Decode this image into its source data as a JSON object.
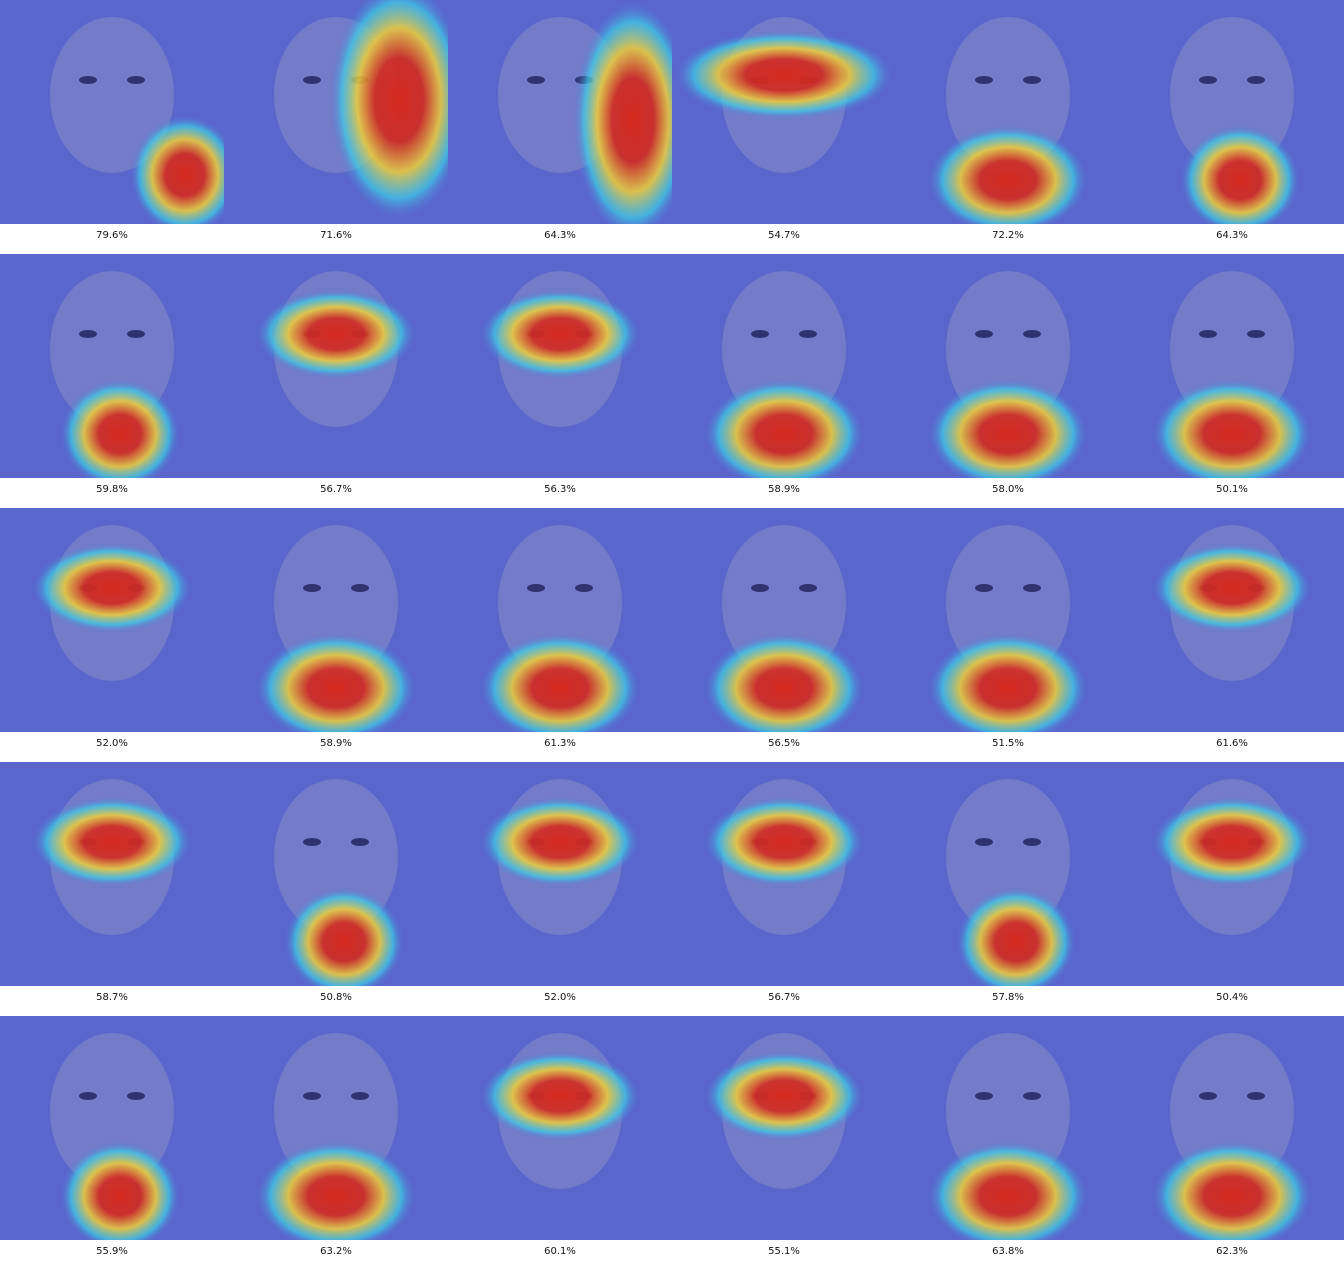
{
  "grid": {
    "rows": 5,
    "cols": 6,
    "cells": [
      {
        "caption": "79.6%",
        "heat_focus": "lower-right"
      },
      {
        "caption": "71.6%",
        "heat_focus": "right"
      },
      {
        "caption": "64.3%",
        "heat_focus": "right-edge"
      },
      {
        "caption": "54.7%",
        "heat_focus": "eyes-wide"
      },
      {
        "caption": "72.2%",
        "heat_focus": "neck"
      },
      {
        "caption": "64.3%",
        "heat_focus": "mouth-chin"
      },
      {
        "caption": "59.8%",
        "heat_focus": "mouth-chin"
      },
      {
        "caption": "56.7%",
        "heat_focus": "eyes"
      },
      {
        "caption": "56.3%",
        "heat_focus": "eyes"
      },
      {
        "caption": "58.9%",
        "heat_focus": "neck"
      },
      {
        "caption": "58.0%",
        "heat_focus": "neck"
      },
      {
        "caption": "50.1%",
        "heat_focus": "neck"
      },
      {
        "caption": "52.0%",
        "heat_focus": "eyes"
      },
      {
        "caption": "58.9%",
        "heat_focus": "neck"
      },
      {
        "caption": "61.3%",
        "heat_focus": "neck"
      },
      {
        "caption": "56.5%",
        "heat_focus": "neck"
      },
      {
        "caption": "51.5%",
        "heat_focus": "neck"
      },
      {
        "caption": "61.6%",
        "heat_focus": "eyes"
      },
      {
        "caption": "58.7%",
        "heat_focus": "eyes"
      },
      {
        "caption": "50.8%",
        "heat_focus": "mouth-chin"
      },
      {
        "caption": "52.0%",
        "heat_focus": "eyes"
      },
      {
        "caption": "56.7%",
        "heat_focus": "eyes"
      },
      {
        "caption": "57.8%",
        "heat_focus": "mouth-chin"
      },
      {
        "caption": "50.4%",
        "heat_focus": "eyes"
      },
      {
        "caption": "55.9%",
        "heat_focus": "mouth-chin"
      },
      {
        "caption": "63.2%",
        "heat_focus": "neck"
      },
      {
        "caption": "60.1%",
        "heat_focus": "eyes"
      },
      {
        "caption": "55.1%",
        "heat_focus": "eyes"
      },
      {
        "caption": "63.8%",
        "heat_focus": "neck"
      },
      {
        "caption": "62.3%",
        "heat_focus": "neck"
      }
    ]
  },
  "colors": {
    "base": "#5a66cc",
    "heat_hot": "#d42a1e",
    "heat_warm": "#f0d038",
    "heat_cool": "#3ad0e8",
    "caption_text": "#111111"
  }
}
